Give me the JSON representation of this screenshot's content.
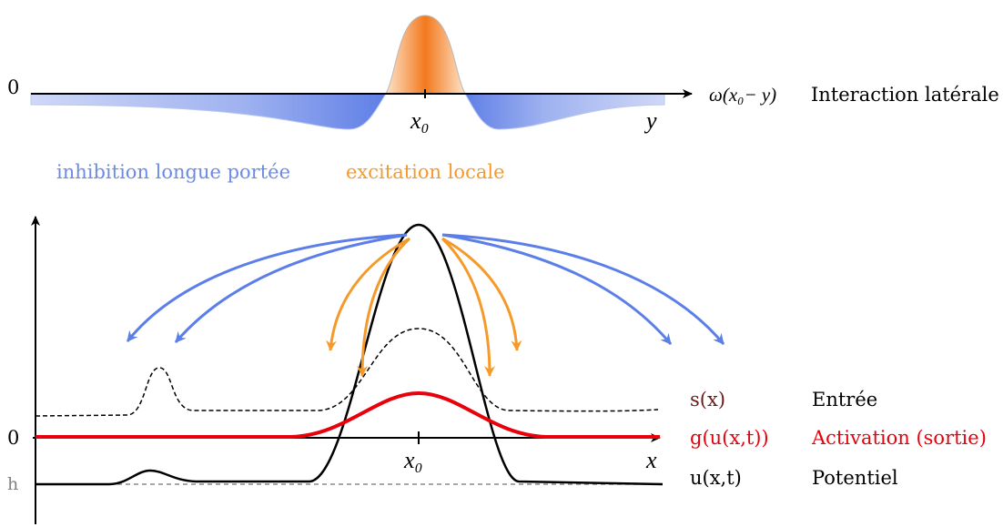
{
  "top": {
    "zero_label": "0",
    "omega_label": "ω(x₀− y)",
    "interaction_label": "Interaction latérale",
    "x0_label": "x₀",
    "y_label": "y",
    "inhibition_label": "inhibition longue portée",
    "excitation_label": "excitation locale"
  },
  "bottom": {
    "zero_label": "0",
    "h_label": "h",
    "x0_label": "x₀",
    "x_label": "x",
    "curves": [
      {
        "symbol": "s(x)",
        "name": "Entrée"
      },
      {
        "symbol": "g(u(x,t))",
        "name": "Activation (sortie)"
      },
      {
        "symbol": "u(x,t)",
        "name": "Potentiel"
      }
    ]
  },
  "colors": {
    "inhibition": "#6b8be8",
    "excitation": "#f59a2a",
    "activation": "#e8000b",
    "black": "#000000",
    "label_dark": "#6b1a1a",
    "grey": "#808080"
  }
}
